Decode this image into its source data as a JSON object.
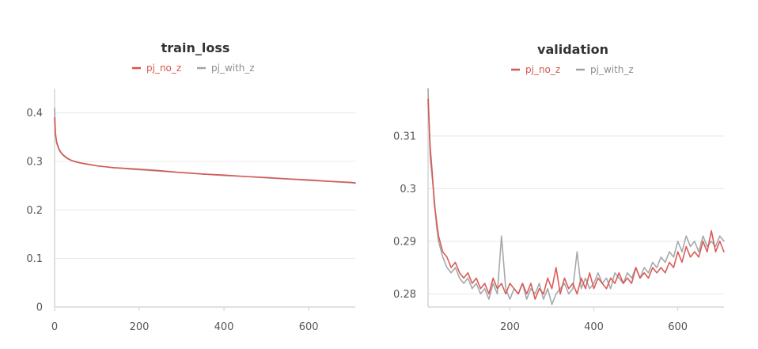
{
  "chart_data": [
    {
      "type": "line",
      "title": "train_loss",
      "xlabel": "",
      "ylabel": "",
      "xlim": [
        0,
        710
      ],
      "ylim": [
        0,
        0.45
      ],
      "xticks": [
        0,
        200,
        400,
        600
      ],
      "xtick_labels": [
        "0",
        "200",
        "400",
        "600"
      ],
      "yticks": [
        0,
        0.1,
        0.2,
        0.3,
        0.4
      ],
      "ytick_labels": [
        "0",
        "0.1",
        "0.2",
        "0.3",
        "0.4"
      ],
      "grid": true,
      "legend": "top-center",
      "series": [
        {
          "name": "pj_no_z",
          "color": "#d9534f",
          "x": [
            0,
            2,
            5,
            10,
            15,
            20,
            30,
            40,
            50,
            60,
            80,
            100,
            120,
            140,
            160,
            180,
            200,
            250,
            300,
            350,
            400,
            450,
            500,
            550,
            600,
            650,
            700,
            710
          ],
          "y": [
            0.39,
            0.355,
            0.338,
            0.325,
            0.318,
            0.313,
            0.306,
            0.302,
            0.299,
            0.297,
            0.294,
            0.291,
            0.289,
            0.287,
            0.286,
            0.285,
            0.284,
            0.281,
            0.277,
            0.274,
            0.272,
            0.269,
            0.267,
            0.264,
            0.262,
            0.259,
            0.257,
            0.256
          ]
        },
        {
          "name": "pj_with_z",
          "color": "#a0a4a8",
          "x": [
            0,
            2,
            5,
            10,
            15,
            20,
            30,
            40,
            50,
            60,
            80,
            100,
            120,
            140,
            160,
            180,
            200,
            250,
            300,
            350,
            400,
            450,
            500,
            550,
            600,
            650,
            700,
            710
          ],
          "y": [
            0.41,
            0.36,
            0.34,
            0.327,
            0.319,
            0.314,
            0.307,
            0.302,
            0.3,
            0.297,
            0.294,
            0.291,
            0.289,
            0.287,
            0.286,
            0.284,
            0.283,
            0.28,
            0.277,
            0.274,
            0.271,
            0.269,
            0.266,
            0.264,
            0.261,
            0.259,
            0.256,
            0.255
          ]
        }
      ]
    },
    {
      "type": "line",
      "title": "validation",
      "xlabel": "",
      "ylabel": "",
      "xlim": [
        5,
        710
      ],
      "ylim": [
        0.2775,
        0.319
      ],
      "xticks": [
        200,
        400,
        600
      ],
      "xtick_labels": [
        "200",
        "400",
        "600"
      ],
      "yticks": [
        0.28,
        0.29,
        0.3,
        0.31
      ],
      "ytick_labels": [
        "0.28",
        "0.29",
        "0.3",
        "0.31"
      ],
      "grid": true,
      "legend": "top-center",
      "series": [
        {
          "name": "pj_no_z",
          "color": "#d9534f",
          "x": [
            5,
            10,
            15,
            20,
            25,
            30,
            40,
            50,
            60,
            70,
            80,
            90,
            100,
            110,
            120,
            130,
            140,
            150,
            160,
            170,
            180,
            190,
            200,
            210,
            220,
            230,
            240,
            250,
            260,
            270,
            280,
            290,
            300,
            310,
            320,
            330,
            340,
            350,
            360,
            370,
            380,
            390,
            400,
            410,
            420,
            430,
            440,
            450,
            460,
            470,
            480,
            490,
            500,
            510,
            520,
            530,
            540,
            550,
            560,
            570,
            580,
            590,
            600,
            610,
            620,
            630,
            640,
            650,
            660,
            670,
            680,
            690,
            700,
            710
          ],
          "y": [
            0.317,
            0.308,
            0.303,
            0.297,
            0.294,
            0.291,
            0.288,
            0.287,
            0.285,
            0.286,
            0.284,
            0.283,
            0.284,
            0.282,
            0.283,
            0.281,
            0.282,
            0.28,
            0.283,
            0.281,
            0.282,
            0.28,
            0.282,
            0.281,
            0.28,
            0.282,
            0.28,
            0.282,
            0.279,
            0.281,
            0.28,
            0.283,
            0.281,
            0.285,
            0.28,
            0.283,
            0.281,
            0.282,
            0.28,
            0.283,
            0.281,
            0.284,
            0.281,
            0.283,
            0.282,
            0.281,
            0.283,
            0.282,
            0.284,
            0.282,
            0.283,
            0.282,
            0.285,
            0.283,
            0.284,
            0.283,
            0.285,
            0.284,
            0.285,
            0.284,
            0.286,
            0.285,
            0.288,
            0.286,
            0.289,
            0.287,
            0.288,
            0.287,
            0.29,
            0.288,
            0.292,
            0.288,
            0.29,
            0.288
          ]
        },
        {
          "name": "pj_with_z",
          "color": "#a0a4a8",
          "x": [
            5,
            10,
            15,
            20,
            25,
            30,
            40,
            50,
            60,
            70,
            80,
            90,
            100,
            110,
            120,
            130,
            140,
            150,
            160,
            170,
            180,
            190,
            200,
            210,
            220,
            230,
            240,
            250,
            260,
            270,
            280,
            290,
            300,
            310,
            320,
            330,
            340,
            350,
            360,
            370,
            380,
            390,
            400,
            410,
            420,
            430,
            440,
            450,
            460,
            470,
            480,
            490,
            500,
            510,
            520,
            530,
            540,
            550,
            560,
            570,
            580,
            590,
            600,
            610,
            620,
            630,
            640,
            650,
            660,
            670,
            680,
            690,
            700,
            710
          ],
          "y": [
            0.319,
            0.306,
            0.302,
            0.298,
            0.293,
            0.29,
            0.287,
            0.285,
            0.284,
            0.285,
            0.283,
            0.282,
            0.283,
            0.281,
            0.282,
            0.28,
            0.281,
            0.279,
            0.282,
            0.28,
            0.291,
            0.281,
            0.279,
            0.281,
            0.28,
            0.282,
            0.279,
            0.281,
            0.28,
            0.282,
            0.279,
            0.281,
            0.278,
            0.28,
            0.281,
            0.282,
            0.28,
            0.281,
            0.288,
            0.281,
            0.283,
            0.281,
            0.282,
            0.284,
            0.282,
            0.283,
            0.281,
            0.284,
            0.283,
            0.282,
            0.284,
            0.283,
            0.285,
            0.283,
            0.285,
            0.284,
            0.286,
            0.285,
            0.287,
            0.286,
            0.288,
            0.287,
            0.29,
            0.288,
            0.291,
            0.289,
            0.29,
            0.288,
            0.291,
            0.289,
            0.29,
            0.289,
            0.291,
            0.29
          ]
        }
      ]
    }
  ]
}
